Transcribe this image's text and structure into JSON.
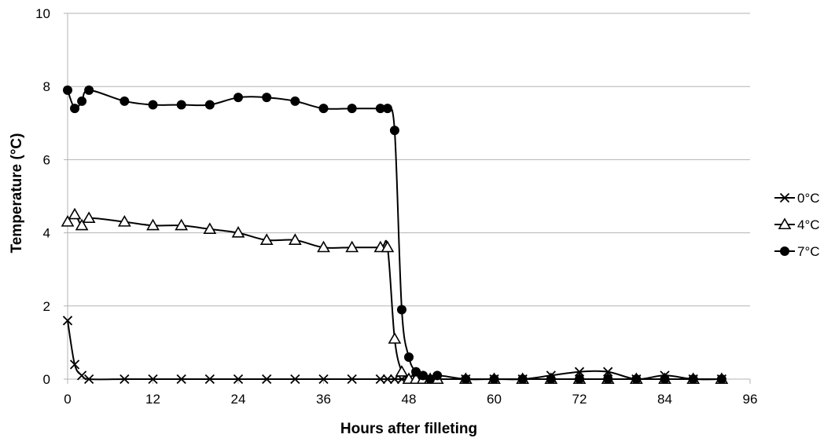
{
  "chart_data": {
    "type": "line",
    "title": "",
    "xlabel": "Hours after filleting",
    "ylabel": "Temperature (°C)",
    "xlim": [
      0,
      96
    ],
    "ylim": [
      0,
      10
    ],
    "xticks": [
      0,
      12,
      24,
      36,
      48,
      60,
      72,
      84,
      96
    ],
    "yticks": [
      0,
      2,
      4,
      6,
      8,
      10
    ],
    "grid": "horizontal",
    "legend_position": "right",
    "series": [
      {
        "name": "0°C",
        "marker": "x",
        "color": "#000000",
        "x": [
          0,
          1,
          2,
          3,
          8,
          12,
          16,
          20,
          24,
          28,
          32,
          36,
          40,
          44,
          45,
          46,
          47,
          48,
          49,
          50,
          51,
          52,
          56,
          60,
          64,
          68,
          72,
          76,
          80,
          84,
          88,
          92
        ],
        "y": [
          1.6,
          0.4,
          0.1,
          0,
          0,
          0,
          0,
          0,
          0,
          0,
          0,
          0,
          0,
          0,
          0,
          0,
          0,
          0,
          0,
          0,
          0,
          0,
          0,
          0,
          0,
          0.1,
          0.2,
          0.2,
          0,
          0.1,
          0,
          0
        ]
      },
      {
        "name": "4°C",
        "marker": "triangle",
        "color": "#000000",
        "x": [
          0,
          1,
          2,
          3,
          8,
          12,
          16,
          20,
          24,
          28,
          32,
          36,
          40,
          44,
          45,
          46,
          47,
          48,
          49,
          50,
          51,
          52,
          56,
          60,
          64,
          68,
          72,
          76,
          80,
          84,
          88,
          92
        ],
        "y": [
          4.3,
          4.5,
          4.2,
          4.4,
          4.3,
          4.2,
          4.2,
          4.1,
          4.0,
          3.8,
          3.8,
          3.6,
          3.6,
          3.6,
          3.6,
          1.1,
          0.2,
          0,
          0,
          0,
          0,
          0,
          0,
          0,
          0,
          0,
          0,
          0,
          0,
          0,
          0,
          0
        ]
      },
      {
        "name": "7°C",
        "marker": "circle",
        "color": "#000000",
        "x": [
          0,
          1,
          2,
          3,
          8,
          12,
          16,
          20,
          24,
          28,
          32,
          36,
          40,
          44,
          45,
          46,
          47,
          48,
          49,
          50,
          51,
          52,
          56,
          60,
          64,
          68,
          72,
          76,
          80,
          84,
          88,
          92
        ],
        "y": [
          7.9,
          7.4,
          7.6,
          7.9,
          7.6,
          7.5,
          7.5,
          7.5,
          7.7,
          7.7,
          7.6,
          7.4,
          7.4,
          7.4,
          7.4,
          6.8,
          1.9,
          0.6,
          0.2,
          0.1,
          0,
          0.1,
          0,
          0,
          0,
          0,
          0,
          0,
          0,
          0,
          0,
          0
        ]
      }
    ]
  }
}
